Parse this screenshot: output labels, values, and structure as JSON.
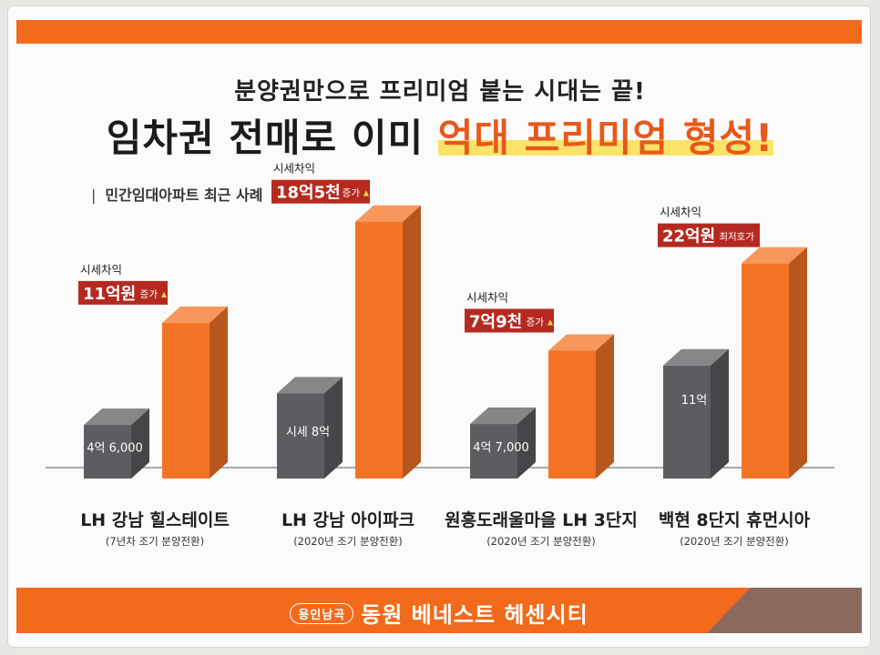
{
  "headline": {
    "line1": "분양권만으로 프리미엄 붙는 시대는 끝!",
    "line2_plain": "임차권 전매로 이미 ",
    "line2_highlight": "억대 프리미엄 형성!"
  },
  "section_label": "민간임대아파트 최근 사례",
  "brand": {
    "tag": "용인남곡",
    "name": "동원 베네스트 헤센시티"
  },
  "colors": {
    "orange": "#f26a1b",
    "bar_orange": "#f47426",
    "bar_gray": "#5d5d61",
    "tag_red": "#b52a20"
  },
  "chart_data": {
    "type": "bar",
    "title": "",
    "categories": [
      "LH 강남 힐스테이트",
      "LH 강남 아이파크",
      "원흥도래울마을 LH 3단지",
      "백현 8단지 휴먼시아"
    ],
    "subtitles": [
      "(7년차 조기 분양전환)",
      "(2020년 조기 분양전환)",
      "(2020년 조기 분양전환)",
      "(2020년 조기 분양전환)"
    ],
    "gray_labels": [
      "4억 6,000",
      "시세 8억",
      "4억 7,000",
      "11억"
    ],
    "gray_values": [
      4.6,
      8,
      4.7,
      11
    ],
    "orange_values": [
      15.6,
      26.5,
      12.6,
      22
    ],
    "caption": "시세차익",
    "gains": [
      {
        "main": "11억원",
        "suffix": "증가"
      },
      {
        "main": "18억5천",
        "suffix": "증가"
      },
      {
        "main": "7억9천",
        "suffix": "증가"
      },
      {
        "main": "22억원",
        "suffix": "최저호가"
      }
    ],
    "up_arrow": "▲"
  }
}
